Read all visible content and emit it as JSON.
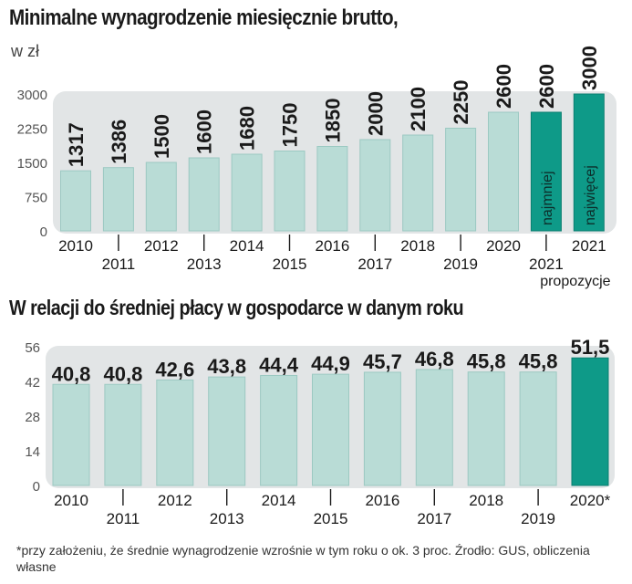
{
  "chart_data": [
    {
      "type": "bar",
      "title": "Minimalne wynagrodzenie miesięcznie brutto,",
      "unit": "w zł",
      "categories": [
        "2010",
        "2011",
        "2012",
        "2013",
        "2014",
        "2015",
        "2016",
        "2017",
        "2018",
        "2019",
        "2020",
        "2021",
        "2021"
      ],
      "category_sublabels": [
        "",
        "",
        "",
        "",
        "",
        "",
        "",
        "",
        "",
        "",
        "",
        "propozycje",
        ""
      ],
      "values": [
        1317,
        1386,
        1500,
        1600,
        1680,
        1750,
        1850,
        2000,
        2100,
        2250,
        2600,
        2600,
        3000
      ],
      "value_labels": [
        "1317",
        "1386",
        "1500",
        "1600",
        "1680",
        "1750",
        "1850",
        "2000",
        "2100",
        "2250",
        "2600",
        "2600",
        "3000"
      ],
      "bar_inner_labels": [
        "",
        "",
        "",
        "",
        "",
        "",
        "",
        "",
        "",
        "",
        "",
        "najmniej",
        "najwięcej"
      ],
      "highlight": [
        false,
        false,
        false,
        false,
        false,
        false,
        false,
        false,
        false,
        false,
        false,
        true,
        true
      ],
      "yticks": [
        0,
        750,
        1500,
        2250,
        3000
      ],
      "ytick_labels": [
        "0",
        "750",
        "1500",
        "2250",
        "3000"
      ],
      "ylim": [
        0,
        3000
      ],
      "grid": false
    },
    {
      "type": "bar",
      "title": "W relacji do średniej płacy w gospodarce w danym roku",
      "categories": [
        "2010",
        "2011",
        "2012",
        "2013",
        "2014",
        "2015",
        "2016",
        "2017",
        "2018",
        "2019",
        "2020*"
      ],
      "values": [
        40.8,
        40.8,
        42.6,
        43.8,
        44.4,
        44.9,
        45.7,
        46.8,
        45.8,
        45.8,
        51.5
      ],
      "value_labels": [
        "40,8",
        "40,8",
        "42,6",
        "43,8",
        "44,4",
        "44,9",
        "45,7",
        "46,8",
        "45,8",
        "45,8",
        "51,5"
      ],
      "highlight": [
        false,
        false,
        false,
        false,
        false,
        false,
        false,
        false,
        false,
        false,
        true
      ],
      "yticks": [
        0,
        14,
        28,
        42,
        56
      ],
      "ytick_labels": [
        "0",
        "14",
        "28",
        "42",
        "56"
      ],
      "ylim": [
        0,
        56
      ],
      "grid": false
    }
  ],
  "footnote": "*przy założeniu, że średnie wynagrodzenie wzrośnie w tym roku o ok. 3 proc. Źrodło: GUS, obliczenia własne",
  "colors": {
    "bar": "#b9dcd6",
    "bar_stroke": "#9cc9c2",
    "highlight": "#0e9a88",
    "panel": "#e2e5e6",
    "text": "#1a1a1a",
    "axis": "#555555"
  }
}
